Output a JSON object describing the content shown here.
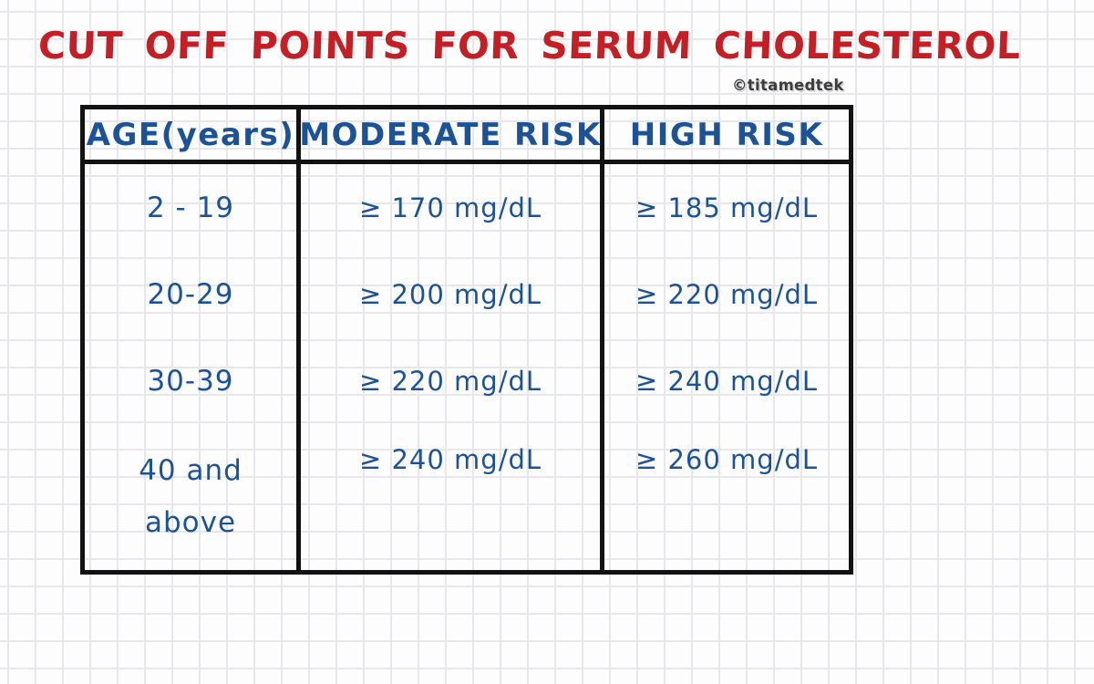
{
  "page": {
    "title": "CUT OFF POINTS FOR SERUM CHOLESTEROL",
    "watermark": "©titamedtek"
  },
  "colors": {
    "title_red": "#c41f25",
    "ink_blue": "#1c5396",
    "table_border": "#121212",
    "grid_line": "#e7e7eb",
    "paper": "#fdfdfe"
  },
  "chart_data": {
    "type": "table",
    "title": "CUT OFF POINTS FOR SERUM CHOLESTEROL",
    "columns": [
      "AGE(years)",
      "MODERATE RISK",
      "HIGH RISK"
    ],
    "rows": [
      [
        "2 - 19",
        "≥ 170 mg/dL",
        "≥ 185 mg/dL"
      ],
      [
        "20-29",
        "≥ 200 mg/dL",
        "≥ 220 mg/dL"
      ],
      [
        "30-39",
        "≥ 220 mg/dL",
        "≥ 240 mg/dL"
      ],
      [
        "40 and above",
        "≥ 240 mg/dL",
        "≥ 260 mg/dL"
      ]
    ],
    "units": "mg/dL",
    "layout": "hand-drawn table on square grid paper, blue ink, red title"
  }
}
